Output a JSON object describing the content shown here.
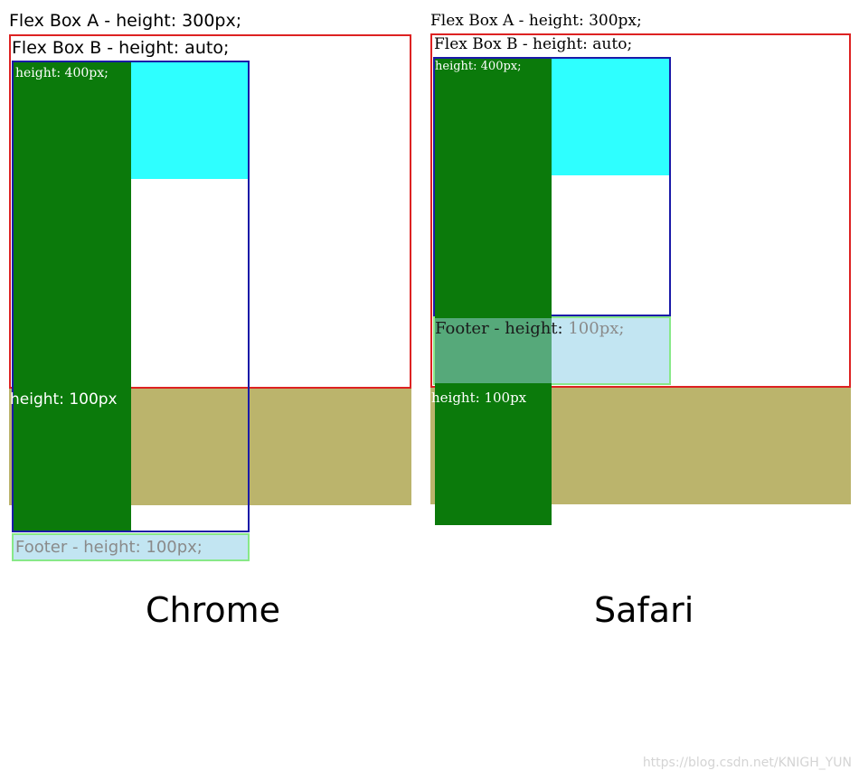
{
  "chrome": {
    "title_a": "Flex Box A - height: 300px;",
    "title_b": "Flex Box B - height: auto;",
    "green_label": "height: 400px;",
    "olive_label": "height: 100px",
    "footer_label": "Footer - height: 100px;",
    "caption": "Chrome"
  },
  "safari": {
    "title_a": "Flex Box A - height: 300px;",
    "title_b": "Flex Box B - height: auto;",
    "green_label": "height: 400px;",
    "footer_label_dark": "Footer - height:",
    "footer_label_light": " 100px;",
    "olive_label": "height: 100px",
    "caption": "Safari"
  },
  "watermark": "https://blog.csdn.net/KNIGH_YUN",
  "colors": {
    "box_a_border": "#dd2222",
    "box_b_border": "#1a1aa8",
    "green": "#0b7a0b",
    "cyan": "#2effff",
    "olive": "#bbb46c",
    "footer_bg": "#c2e5f2",
    "footer_border": "#88e888"
  }
}
